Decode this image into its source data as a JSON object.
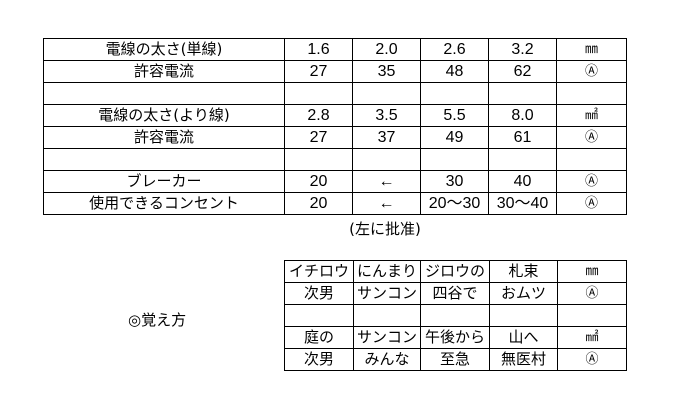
{
  "main_table": {
    "rows": [
      {
        "label": "電線の太さ(単線)",
        "values": [
          "1.6",
          "2.0",
          "2.6",
          "3.2"
        ],
        "unit": "㎜"
      },
      {
        "label": "許容電流",
        "values": [
          "27",
          "35",
          "48",
          "62"
        ],
        "unit": "Ⓐ"
      },
      {
        "label": "",
        "values": [
          "",
          "",
          "",
          ""
        ],
        "unit": ""
      },
      {
        "label": "電線の太さ(より線)",
        "values": [
          "2.8",
          "3.5",
          "5.5",
          "8.0"
        ],
        "unit": "㎟"
      },
      {
        "label": "許容電流",
        "values": [
          "27",
          "37",
          "49",
          "61"
        ],
        "unit": "Ⓐ"
      },
      {
        "label": "",
        "values": [
          "",
          "",
          "",
          ""
        ],
        "unit": ""
      },
      {
        "label": "ブレーカー",
        "values": [
          "20",
          "←",
          "30",
          "40"
        ],
        "unit": "Ⓐ"
      },
      {
        "label": "使用できるコンセント",
        "values": [
          "20",
          "←",
          "20～30",
          "30～40"
        ],
        "unit": "Ⓐ"
      }
    ],
    "note": "(左に批准)"
  },
  "memo_label": "◎覚え方",
  "memo_table": {
    "rows": [
      {
        "values": [
          "イチロウ",
          "にんまり",
          "ジロウの",
          "札束"
        ],
        "unit": "㎜"
      },
      {
        "values": [
          "次男",
          "サンコン",
          "四谷で",
          "おムツ"
        ],
        "unit": "Ⓐ"
      },
      {
        "values": [
          "",
          "",
          "",
          ""
        ],
        "unit": ""
      },
      {
        "values": [
          "庭の",
          "サンコン",
          "午後から",
          "山へ"
        ],
        "unit": "㎟"
      },
      {
        "values": [
          "次男",
          "みんな",
          "至急",
          "無医村"
        ],
        "unit": "Ⓐ"
      }
    ]
  }
}
